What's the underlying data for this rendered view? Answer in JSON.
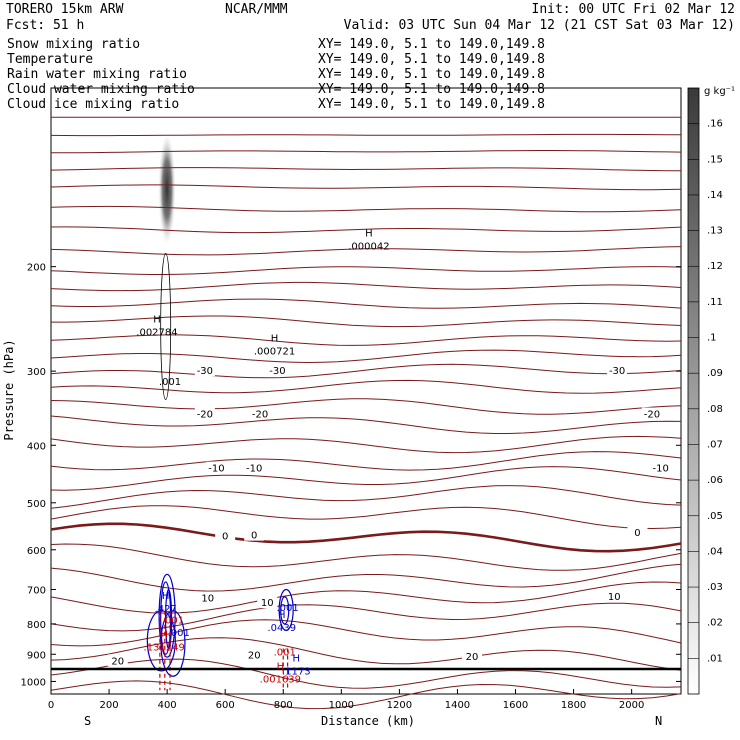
{
  "header": {
    "model": "TORERO  15km ARW",
    "org": "NCAR/MMM",
    "init": "Init: 00 UTC Fri 02 Mar 12",
    "fcst": "Fcst:   51 h",
    "valid": "Valid: 03 UTC Sun 04 Mar 12 (21 CST Sat 03 Mar 12)"
  },
  "fields": [
    {
      "name": "Snow mixing ratio",
      "xy": "XY= 149.0,  5.1 to 149.0,149.8",
      "color": "#000000"
    },
    {
      "name": "Temperature",
      "xy": "XY= 149.0,  5.1 to 149.0,149.8",
      "color": "#cc0000"
    },
    {
      "name": "Rain water mixing ratio",
      "xy": "XY= 149.0,  5.1 to 149.0,149.8",
      "color": "#cc0000"
    },
    {
      "name": "Cloud water mixing ratio",
      "xy": "XY= 149.0,  5.1 to 149.0,149.8",
      "color": "#0000cc"
    },
    {
      "name": "Cloud ice mixing ratio",
      "xy": "XY= 149.0,  5.1 to 149.0,149.8",
      "color": "#000000"
    }
  ],
  "chart_data": {
    "type": "cross-section contour",
    "xlabel": "Distance (km)",
    "ylabel": "Pressure (hPa)",
    "xlim": [
      0,
      2170
    ],
    "ylim": [
      1050,
      100
    ],
    "y_scale": "log",
    "x_ticks": [
      0,
      200,
      400,
      600,
      800,
      1000,
      1200,
      1400,
      1600,
      1800,
      2000
    ],
    "y_ticks": [
      200,
      300,
      400,
      500,
      600,
      700,
      800,
      900,
      1000
    ],
    "x_end_labels": {
      "left": "S",
      "right": "N"
    },
    "colorbar": {
      "unit": "g kg⁻¹",
      "ticks": [
        ".01",
        ".02",
        ".03",
        ".04",
        ".05",
        ".06",
        ".07",
        ".08",
        ".09",
        ".1",
        ".11",
        ".12",
        ".13",
        ".14",
        ".15",
        ".16"
      ]
    },
    "temperature_labels": [
      {
        "text": "-30",
        "x": 530,
        "p": 300
      },
      {
        "text": "-30",
        "x": 780,
        "p": 300
      },
      {
        "text": "-30",
        "x": 1950,
        "p": 300
      },
      {
        "text": "-20",
        "x": 530,
        "p": 355
      },
      {
        "text": "-20",
        "x": 720,
        "p": 355
      },
      {
        "text": "-20",
        "x": 2070,
        "p": 355
      },
      {
        "text": "-10",
        "x": 570,
        "p": 438
      },
      {
        "text": "-10",
        "x": 700,
        "p": 438
      },
      {
        "text": "-10",
        "x": 2100,
        "p": 438
      },
      {
        "text": "0",
        "x": 600,
        "p": 570
      },
      {
        "text": "0",
        "x": 700,
        "p": 568
      },
      {
        "text": "0",
        "x": 2020,
        "p": 562
      },
      {
        "text": "10",
        "x": 540,
        "p": 725
      },
      {
        "text": "10",
        "x": 745,
        "p": 738
      },
      {
        "text": "10",
        "x": 1940,
        "p": 720
      },
      {
        "text": "20",
        "x": 230,
        "p": 925
      },
      {
        "text": "20",
        "x": 700,
        "p": 905
      },
      {
        "text": "20",
        "x": 1450,
        "p": 910
      }
    ],
    "extrema_labels": [
      {
        "text": "H",
        "value": ".000042",
        "x": 1095,
        "p": 185,
        "color": "#000000"
      },
      {
        "text": "H",
        "value": ".002784",
        "x": 365,
        "p": 258,
        "color": "#000000"
      },
      {
        "text": "H",
        "value": ".000721",
        "x": 770,
        "p": 278,
        "color": "#000000"
      },
      {
        "text": "",
        "value": ".001",
        "x": 410,
        "p": 313,
        "color": "#000000"
      },
      {
        "text": "H",
        "value": ".427",
        "x": 395,
        "p": 755,
        "color": "#0000cc"
      },
      {
        "text": "",
        "value": ".001",
        "x": 420,
        "p": 790,
        "color": "#cc0000"
      },
      {
        "text": "",
        "value": ".001",
        "x": 440,
        "p": 828,
        "color": "#0000cc"
      },
      {
        "text": "",
        "value": ".001",
        "x": 815,
        "p": 752,
        "color": "#0000cc"
      },
      {
        "text": "H",
        "value": ".0439",
        "x": 795,
        "p": 812,
        "color": "#0000cc"
      },
      {
        "text": "H",
        "value": ".131249",
        "x": 390,
        "p": 877,
        "color": "#cc0000"
      },
      {
        "text": "",
        "value": ".001",
        "x": 805,
        "p": 893,
        "color": "#cc0000"
      },
      {
        "text": "H",
        "value": ".1173",
        "x": 845,
        "p": 962,
        "color": "#0000cc"
      },
      {
        "text": "H",
        "value": ".001639",
        "x": 790,
        "p": 992,
        "color": "#cc0000"
      }
    ]
  }
}
